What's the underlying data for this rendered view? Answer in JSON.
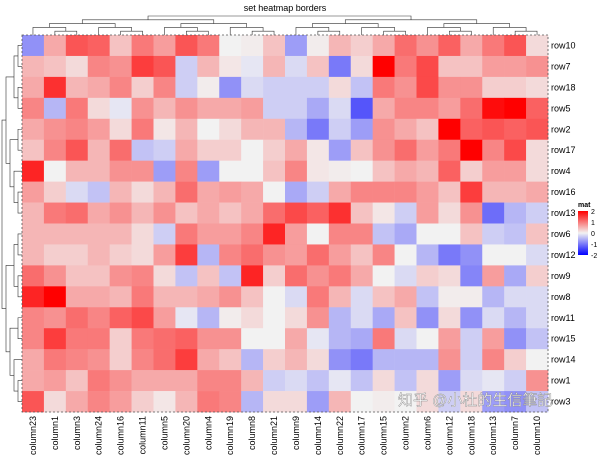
{
  "chart_data": {
    "type": "heatmap",
    "title": "set heatmap borders",
    "columns": [
      "column23",
      "column1",
      "column3",
      "column24",
      "column16",
      "column11",
      "column5",
      "column20",
      "column4",
      "column19",
      "column8",
      "column21",
      "column9",
      "column14",
      "column22",
      "column17",
      "column15",
      "column2",
      "column6",
      "column12",
      "column18",
      "column13",
      "column7",
      "column10"
    ],
    "rows": [
      "row10",
      "row7",
      "row18",
      "row5",
      "row2",
      "row17",
      "row4",
      "row16",
      "row13",
      "row6",
      "row12",
      "row9",
      "row8",
      "row11",
      "row15",
      "row14",
      "row1",
      "row3"
    ],
    "values": [
      [
        -0.8,
        0.6,
        1.3,
        1.2,
        0.4,
        1.0,
        0.7,
        1.3,
        1.0,
        0.0,
        0.05,
        0.4,
        -0.7,
        0.05,
        0.5,
        0.3,
        0.6,
        1.1,
        0.8,
        1.2,
        0.6,
        1.0,
        1.3,
        0.2
      ],
      [
        0.5,
        0.4,
        0.2,
        0.9,
        0.8,
        1.5,
        1.3,
        -0.3,
        0.5,
        0.1,
        -0.1,
        0.5,
        -0.2,
        0.4,
        -1.0,
        0.2,
        2.0,
        1.0,
        1.4,
        0.4,
        0.4,
        0.7,
        0.7,
        0.8
      ],
      [
        0.6,
        1.6,
        0.5,
        0.6,
        0.9,
        0.3,
        0.9,
        -0.3,
        0.05,
        -0.8,
        -0.2,
        -0.3,
        -0.3,
        -0.3,
        0.2,
        -0.4,
        1.0,
        0.8,
        1.4,
        0.8,
        0.8,
        0.3,
        0.3,
        0.2
      ],
      [
        0.9,
        -0.5,
        1.0,
        0.2,
        -0.1,
        0.8,
        0.5,
        0.8,
        0.6,
        0.6,
        0.7,
        -0.3,
        -0.3,
        -0.6,
        -0.2,
        -1.3,
        0.6,
        0.9,
        0.9,
        0.7,
        1.1,
        1.9,
        2.0,
        1.2
      ],
      [
        0.6,
        0.8,
        0.9,
        0.7,
        0.2,
        1.0,
        0.1,
        0.5,
        0.0,
        0.2,
        0.5,
        0.5,
        -0.5,
        -1.0,
        -0.3,
        -0.7,
        0.8,
        0.6,
        0.4,
        2.0,
        1.2,
        1.3,
        1.2,
        1.3
      ],
      [
        0.4,
        0.9,
        1.3,
        0.5,
        1.1,
        -0.4,
        -0.3,
        0.6,
        0.3,
        0.3,
        0.0,
        0.3,
        0.6,
        0.1,
        -0.7,
        0.4,
        0.8,
        1.1,
        0.7,
        1.0,
        2.0,
        0.9,
        1.4,
        0.2
      ],
      [
        1.7,
        0.0,
        0.5,
        0.5,
        0.8,
        0.8,
        -0.7,
        0.9,
        -0.7,
        0.0,
        0.0,
        0.4,
        0.9,
        0.1,
        0.05,
        0.0,
        0.4,
        0.6,
        0.5,
        1.2,
        0.3,
        0.7,
        0.7,
        0.2
      ],
      [
        0.7,
        0.3,
        -0.2,
        -0.4,
        0.5,
        0.2,
        0.5,
        1.1,
        0.6,
        0.7,
        0.6,
        0.0,
        -0.6,
        -0.3,
        0.6,
        0.9,
        0.9,
        0.9,
        0.7,
        0.4,
        1.5,
        0.5,
        0.5,
        0.6
      ],
      [
        0.5,
        1.0,
        1.1,
        0.6,
        0.8,
        0.5,
        0.8,
        0.4,
        0.6,
        0.4,
        0.6,
        1.1,
        1.4,
        1.2,
        1.6,
        0.4,
        0.1,
        -0.3,
        0.7,
        0.2,
        0.8,
        -1.1,
        -0.5,
        -0.3
      ],
      [
        0.5,
        0.5,
        0.5,
        0.5,
        0.5,
        0.2,
        -0.3,
        1.0,
        0.7,
        0.7,
        0.9,
        1.7,
        0.7,
        0.0,
        0.9,
        0.9,
        -0.4,
        -0.6,
        0.0,
        0.0,
        0.4,
        -0.3,
        -0.4,
        0.4
      ],
      [
        0.5,
        0.3,
        0.3,
        0.5,
        0.3,
        0.2,
        0.7,
        1.5,
        -0.5,
        0.9,
        1.1,
        0.8,
        0.7,
        1.1,
        0.7,
        0.4,
        0.9,
        0.0,
        -0.5,
        -1.0,
        -0.8,
        0.0,
        0.0,
        -0.2
      ],
      [
        1.1,
        0.8,
        0.4,
        0.4,
        0.8,
        0.9,
        0.2,
        -0.4,
        0.4,
        -0.4,
        1.7,
        0.3,
        1.1,
        0.8,
        1.0,
        0.6,
        0.0,
        -0.2,
        0.3,
        0.2,
        -0.9,
        0.7,
        -0.6,
        0.3
      ],
      [
        1.7,
        2.0,
        0.6,
        0.6,
        0.5,
        1.0,
        0.5,
        0.5,
        0.6,
        0.8,
        0.4,
        0.0,
        -0.2,
        1.0,
        0.5,
        -0.2,
        0.4,
        0.6,
        -0.4,
        0.05,
        0.05,
        -0.5,
        -0.2,
        -0.2
      ],
      [
        0.9,
        0.8,
        1.1,
        0.9,
        1.2,
        1.4,
        0.7,
        -0.1,
        -0.5,
        0.05,
        0.2,
        0.0,
        0.2,
        0.8,
        -0.5,
        -0.2,
        -0.6,
        0.4,
        -0.8,
        0.2,
        -0.8,
        -0.2,
        -0.5,
        -0.2
      ],
      [
        0.9,
        1.5,
        1.0,
        1.0,
        0.3,
        1.0,
        1.1,
        1.2,
        0.8,
        0.8,
        0.0,
        0.0,
        0.6,
        -0.1,
        -0.5,
        -0.6,
        1.0,
        -0.2,
        0.0,
        0.7,
        -0.3,
        0.7,
        -0.8,
        -0.4
      ],
      [
        0.6,
        1.0,
        0.9,
        0.8,
        0.3,
        0.9,
        1.1,
        1.5,
        0.6,
        0.4,
        -0.5,
        0.3,
        0.5,
        0.2,
        -0.8,
        -1.0,
        -0.5,
        -0.5,
        -0.5,
        0.8,
        -0.3,
        0.9,
        0.3,
        0.0
      ],
      [
        0.6,
        0.7,
        0.4,
        1.0,
        0.8,
        0.6,
        0.6,
        0.6,
        0.9,
        0.9,
        0.5,
        -0.3,
        -0.2,
        -0.4,
        -0.1,
        -0.4,
        0.2,
        -0.4,
        0.2,
        -0.7,
        -0.2,
        -0.1,
        -0.3,
        0.8
      ],
      [
        1.3,
        0.2,
        0.6,
        0.9,
        0.7,
        0.3,
        0.1,
        0.5,
        1.0,
        0.9,
        -0.5,
        0.2,
        0.2,
        -0.7,
        0.5,
        0.0,
        0.05,
        0.0,
        0.2,
        -0.3,
        0.2,
        -0.7,
        -0.8,
        -0.4
      ]
    ],
    "color_scale": {
      "min": -2,
      "mid": 0,
      "max": 2,
      "low_color": "#0000FF",
      "mid_color": "#F2F2F2",
      "high_color": "#FF0000"
    },
    "legend": {
      "title": "mat",
      "ticks": [
        "2",
        "1",
        "0",
        "-1",
        "-2"
      ],
      "placement": "right"
    },
    "row_dendrogram": true,
    "column_dendrogram": true,
    "border": "dashed"
  },
  "watermark": "知乎 @小杜的生信筆記"
}
